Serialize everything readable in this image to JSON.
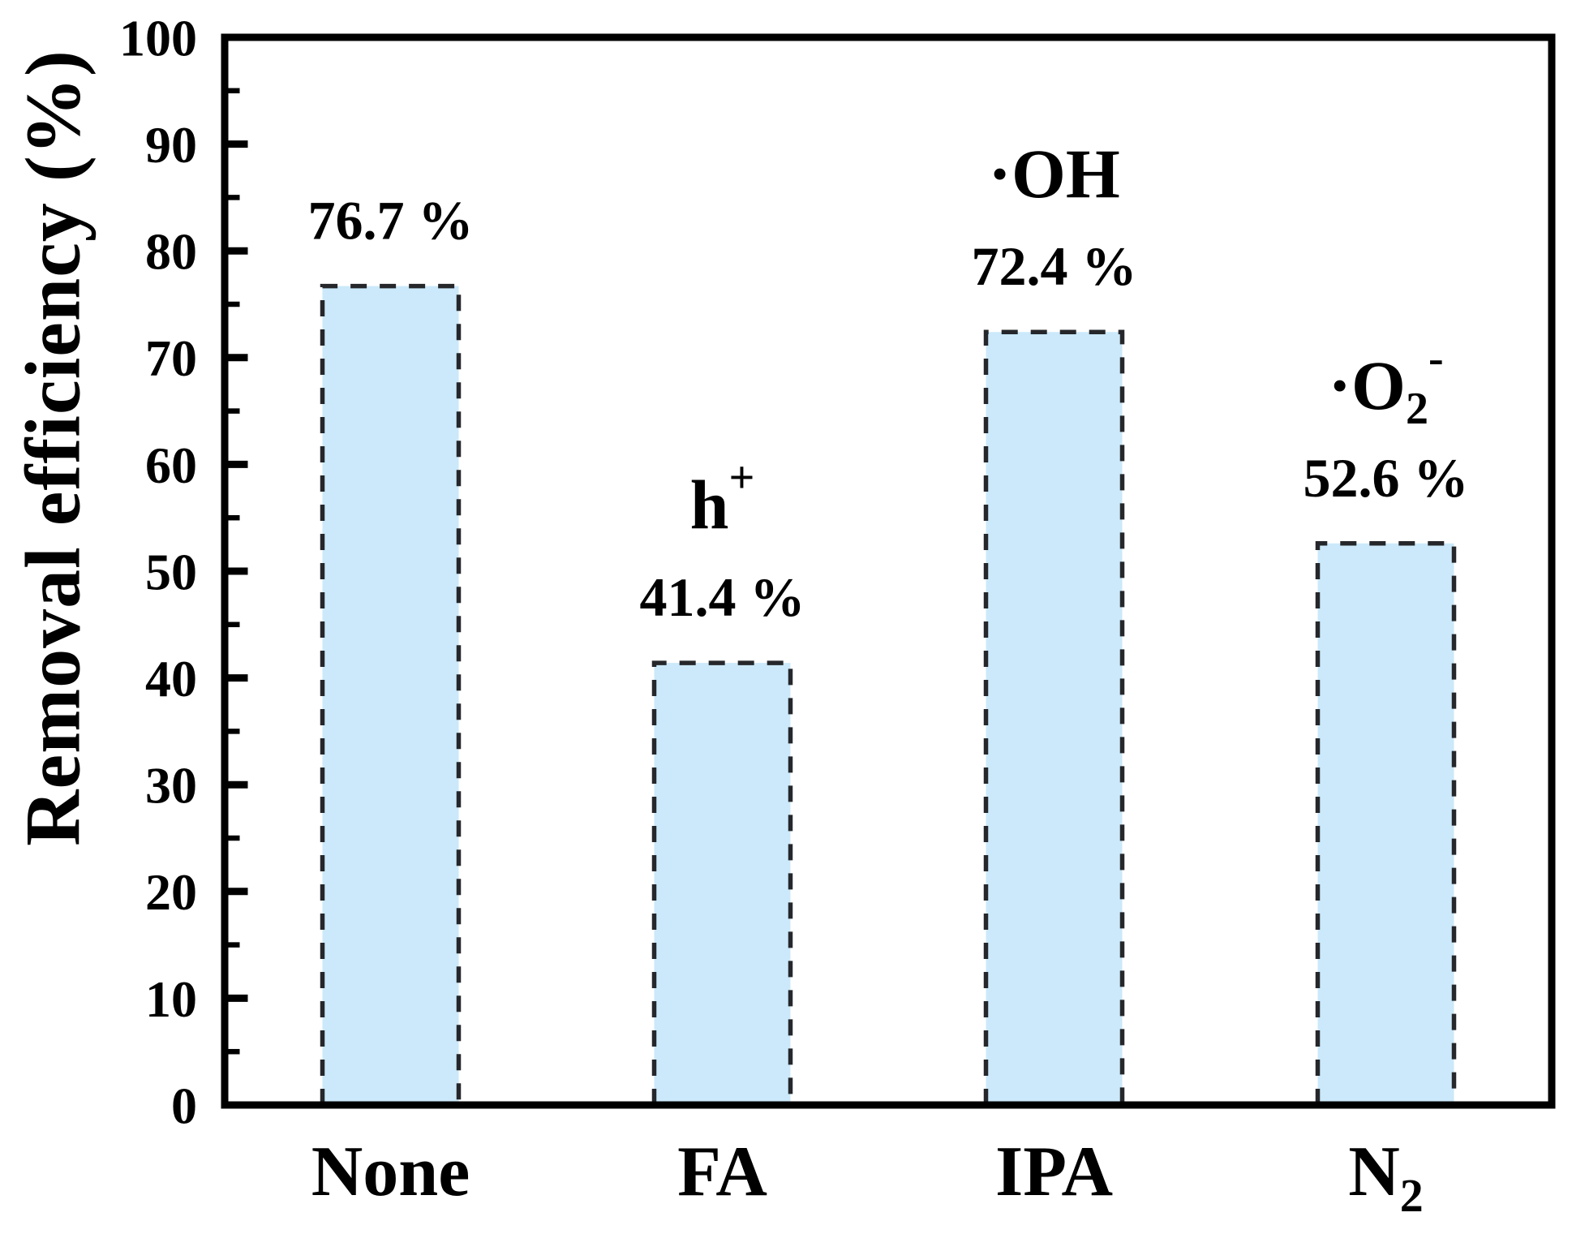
{
  "figure": {
    "background_color": "#ffffff"
  },
  "chart_data": {
    "type": "bar",
    "title": "",
    "xlabel": "",
    "ylabel": "Removal efficiency (%)",
    "ylim": [
      0,
      100
    ],
    "ytick_step_major": 10,
    "ytick_step_minor": 5,
    "ytick_labels": [
      "0",
      "10",
      "20",
      "30",
      "40",
      "50",
      "60",
      "70",
      "80",
      "90",
      "100"
    ],
    "grid": "off",
    "legend_position": "none",
    "bar_fill_color": "#cbe9fa",
    "bar_border_color": "#25272b",
    "bar_border_style": "dashed",
    "axis_color": "#000000",
    "text_color": "#000000",
    "categories": [
      "None",
      "FA",
      "IPA",
      "N2"
    ],
    "bars": [
      {
        "category": {
          "text": "None"
        },
        "value": 76.7,
        "value_label": "76.7 %",
        "annotation": null
      },
      {
        "category": {
          "text": "FA"
        },
        "value": 41.4,
        "value_label": "41.4 %",
        "annotation": {
          "prefix": "",
          "base": "h",
          "sub": "",
          "sup": "+"
        }
      },
      {
        "category": {
          "text": "IPA"
        },
        "value": 72.4,
        "value_label": "72.4 %",
        "annotation": {
          "prefix": "·",
          "base": "OH",
          "sub": "",
          "sup": ""
        }
      },
      {
        "category": {
          "text": "N",
          "sub": "2"
        },
        "value": 52.6,
        "value_label": "52.6 %",
        "annotation": {
          "prefix": "·",
          "base": "O",
          "sub": "2",
          "sup": "-"
        }
      }
    ]
  }
}
